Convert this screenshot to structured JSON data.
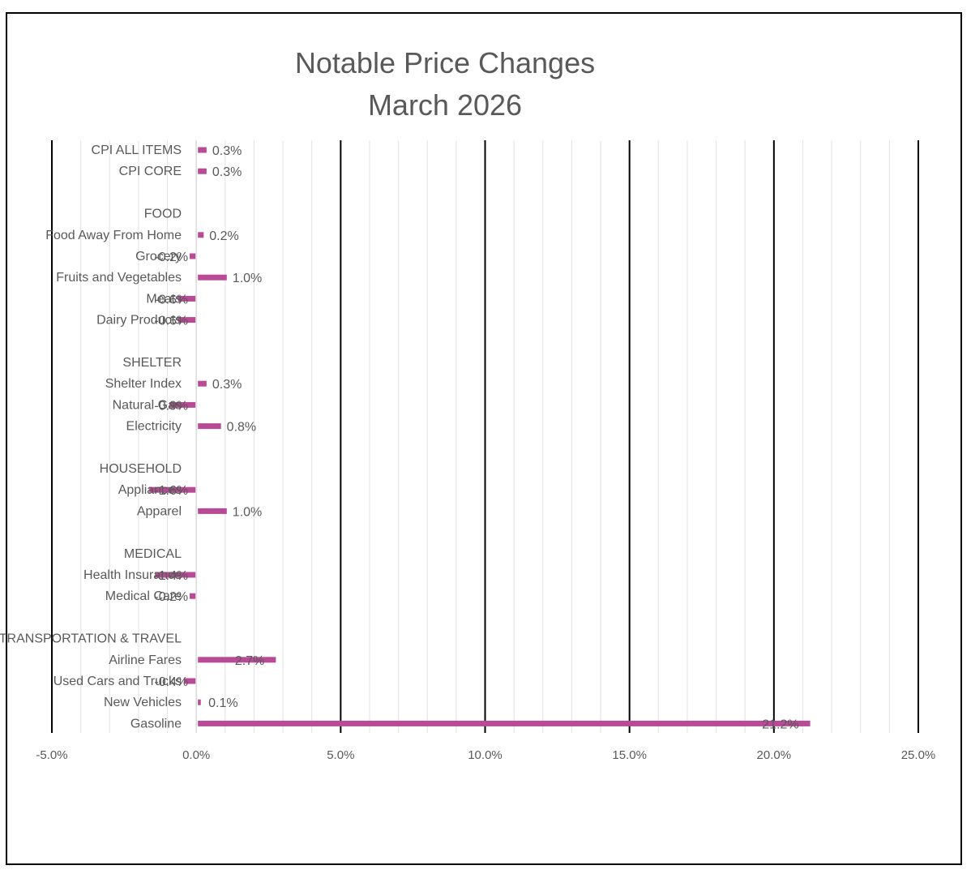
{
  "chart_data": {
    "type": "bar",
    "orientation": "horizontal",
    "title": "Notable Price Changes",
    "subtitle": "March 2026",
    "categories": [
      "CPI ALL ITEMS",
      "CPI CORE",
      "",
      "FOOD",
      "Food Away From Home",
      "Grocery",
      "Fruits and Vegetables",
      "Meats",
      "Dairy Products",
      "",
      "SHELTER",
      "Shelter Index",
      "Natural Gas",
      "Electricity",
      "",
      "HOUSEHOLD",
      "Appliances",
      "Apparel",
      "",
      "MEDICAL",
      "Health Insurance",
      "Medical Care",
      "",
      "TRANSPORTATION & TRAVEL",
      "Airline Fares",
      "Used Cars and Trucks",
      "New Vehicles",
      "Gasoline"
    ],
    "values": [
      0.3,
      0.3,
      null,
      null,
      0.2,
      -0.2,
      1.0,
      -0.6,
      -0.6,
      null,
      null,
      0.3,
      -0.9,
      0.8,
      null,
      null,
      -1.6,
      1.0,
      null,
      null,
      -1.4,
      -0.2,
      null,
      null,
      2.7,
      -0.4,
      0.1,
      21.2
    ],
    "data_labels": [
      "0.3%",
      "0.3%",
      "",
      "",
      "0.2%",
      "-0.2%",
      "1.0%",
      "-0.6%",
      "-0.6%",
      "",
      "",
      "0.3%",
      "-0.9%",
      "0.8%",
      "",
      "",
      "-1.6%",
      "1.0%",
      "",
      "",
      "-1.4%",
      "-0.2%",
      "",
      "",
      "2.7%",
      "-0.4%",
      "0.1%",
      "21.2%"
    ],
    "xlim": [
      -5,
      25
    ],
    "xticks": [
      -5,
      0,
      5,
      10,
      15,
      20,
      25
    ],
    "xtick_labels": [
      "-5.0%",
      "0.0%",
      "5.0%",
      "10.0%",
      "15.0%",
      "20.0%",
      "25.0%"
    ],
    "minor_step": 1,
    "xlabel": "",
    "ylabel": "",
    "grid": true,
    "colors": {
      "bar": "#b84a96",
      "major_grid": "#000000",
      "minor_grid": "#e6e6e6",
      "title": "#595959",
      "label": "#595959"
    }
  }
}
